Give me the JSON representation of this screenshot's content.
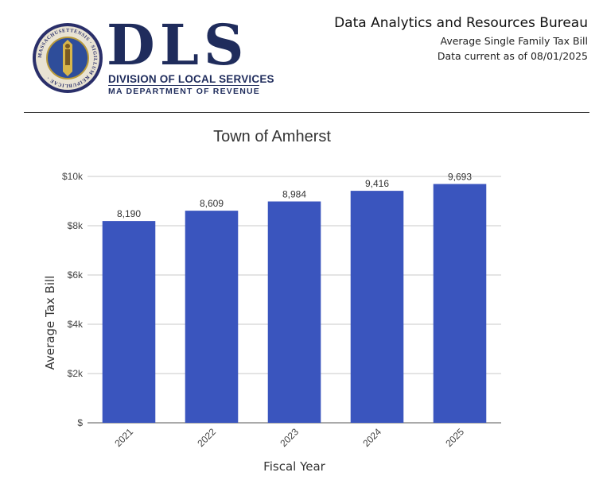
{
  "header": {
    "seal_text": "MASSACHUSETTENSIS · SIGILLUM REIPUBLICAE ·",
    "logo_letters": "DLS",
    "logo_line1": "DIVISION OF LOCAL SERVICES",
    "logo_line2": "MA DEPARTMENT OF REVENUE",
    "bureau": "Data Analytics and Resources Bureau",
    "subtitle": "Average Single Family Tax Bill",
    "data_current_label": "Data current as of",
    "data_current_date": "08/01/2025"
  },
  "colors": {
    "bar": "#3a55be",
    "grid": "#c8c8c8",
    "logo_navy": "#1f2c5c"
  },
  "chart_data": {
    "type": "bar",
    "title": "Town of Amherst",
    "xlabel": "Fiscal Year",
    "ylabel": "Average Tax Bill",
    "categories": [
      "2021",
      "2022",
      "2023",
      "2024",
      "2025"
    ],
    "values": [
      8190,
      8609,
      8984,
      9416,
      9693
    ],
    "value_labels": [
      "8,190",
      "8,609",
      "8,984",
      "9,416",
      "9,693"
    ],
    "ylim": [
      0,
      10000
    ],
    "yticks": [
      0,
      2000,
      4000,
      6000,
      8000,
      10000
    ],
    "ytick_labels": [
      "$",
      "$2k",
      "$4k",
      "$6k",
      "$8k",
      "$10k"
    ],
    "grid": true,
    "legend": "none"
  }
}
